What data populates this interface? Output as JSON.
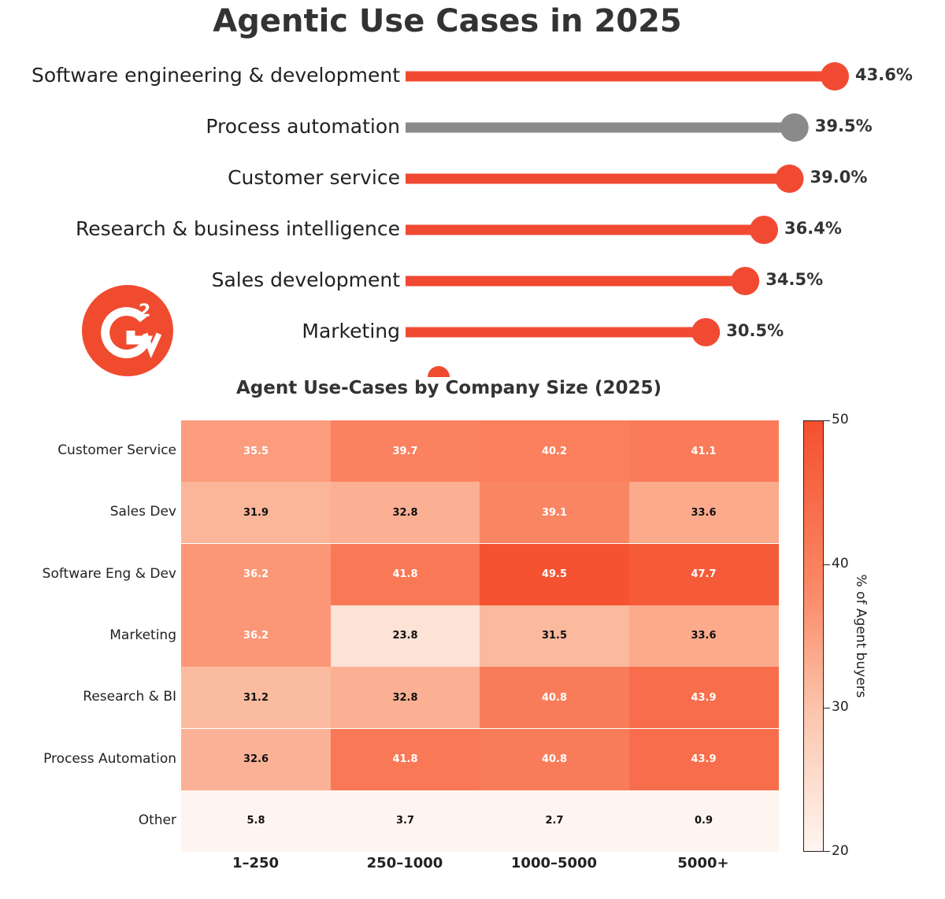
{
  "chart_data": [
    {
      "type": "lollipop",
      "title": "Agentic Use Cases in 2025",
      "categories": [
        "Software engineering & development",
        "Process automation",
        "Customer service",
        "Research & business intelligence",
        "Sales development",
        "Marketing"
      ],
      "values": [
        43.6,
        39.5,
        39.0,
        36.4,
        34.5,
        30.5
      ],
      "value_labels": [
        "43.6%",
        "39.5%",
        "39.0%",
        "36.4%",
        "34.5%",
        "30.5%"
      ],
      "highlight_index": 1,
      "xlim": [
        0,
        43.6
      ],
      "colors": {
        "default": "#f14a32",
        "highlight": "#8a8a8a"
      }
    },
    {
      "type": "heatmap",
      "title": "Agent Use-Cases by Company Size (2025)",
      "rows": [
        "Customer Service",
        "Sales Dev",
        "Software Eng & Dev",
        "Marketing",
        "Research & BI",
        "Process Automation",
        "Other"
      ],
      "columns": [
        "1–250",
        "250–1000",
        "1000–5000",
        "5000+"
      ],
      "values": [
        [
          35.5,
          39.7,
          40.2,
          41.1
        ],
        [
          31.9,
          32.8,
          39.1,
          33.6
        ],
        [
          36.2,
          41.8,
          49.5,
          47.7
        ],
        [
          36.2,
          23.8,
          31.5,
          33.6
        ],
        [
          31.2,
          32.8,
          40.8,
          43.9
        ],
        [
          32.6,
          41.8,
          40.8,
          43.9
        ],
        [
          5.8,
          3.7,
          2.7,
          0.9
        ]
      ],
      "colorbar": {
        "label": "% of Agent buyers",
        "range": [
          20,
          50
        ],
        "ticks": [
          "20",
          "30",
          "40",
          "50"
        ]
      }
    }
  ],
  "logo": {
    "text": "G2",
    "color": "#f04b2f"
  }
}
